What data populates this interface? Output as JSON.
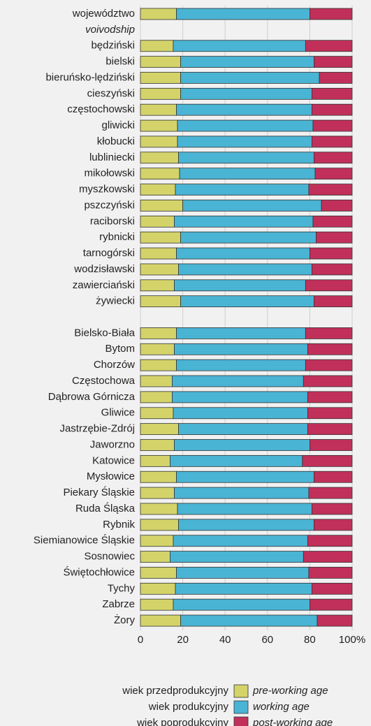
{
  "chart_data": {
    "type": "stacked_barh",
    "categories": [
      "województwo",
      "voivodship",
      "będziński",
      "bielski",
      "bieruńsko-lędziński",
      "cieszyński",
      "częstochowski",
      "gliwicki",
      "kłobucki",
      "lubliniecki",
      "mikołowski",
      "myszkowski",
      "pszczyński",
      "raciborski",
      "rybnicki",
      "tarnogórski",
      "wodzisławski",
      "zawierciański",
      "żywiecki",
      null,
      "Bielsko-Biała",
      "Bytom",
      "Chorzów",
      "Częstochowa",
      "Dąbrowa Górnicza",
      "Gliwice",
      "Jastrzębie-Zdrój",
      "Jaworzno",
      "Katowice",
      "Mysłowice",
      "Piekary Śląskie",
      "Ruda Śląska",
      "Rybnik",
      "Siemianowice Śląskie",
      "Sosnowiec",
      "Świętochłowice",
      "Tychy",
      "Zabrze",
      "Żory"
    ],
    "series": [
      {
        "name": "wiek przedprodukcyjny",
        "name_en": "pre-working age",
        "color": "#d3d36a",
        "values": [
          17,
          null,
          15.5,
          19,
          19,
          19,
          17,
          17.5,
          17.5,
          18,
          18.5,
          16.5,
          20,
          16,
          19,
          17,
          18,
          16,
          19,
          null,
          17,
          16,
          17,
          15,
          15,
          15.5,
          18,
          16,
          14,
          17,
          16,
          17.5,
          18,
          15.5,
          14,
          17,
          16.5,
          15.5,
          19
        ]
      },
      {
        "name": "wiek produkcyjny",
        "name_en": "working age",
        "color": "#4ab4d4",
        "values": [
          63,
          null,
          62.5,
          63,
          65.5,
          62,
          64,
          64,
          63.5,
          64,
          64,
          63,
          65.5,
          65.5,
          64,
          63,
          63,
          62,
          63,
          null,
          61,
          63,
          61,
          62,
          64,
          63.5,
          61,
          64,
          62.5,
          65,
          63.5,
          63.5,
          64,
          63.5,
          63,
          62.5,
          64.5,
          64.5,
          64.5
        ]
      },
      {
        "name": "wiek poprodukcyjny",
        "name_en": "post-working age",
        "color": "#c1305a",
        "values": [
          20,
          null,
          22,
          18,
          15.5,
          19,
          19,
          18.5,
          19,
          18,
          17.5,
          20.5,
          14.5,
          18.5,
          17,
          20,
          19,
          22,
          18,
          null,
          22,
          21,
          22,
          23,
          21,
          21,
          21,
          20,
          23.5,
          18,
          20.5,
          19,
          18,
          21,
          23,
          20.5,
          19,
          20,
          16.5
        ]
      }
    ],
    "xlim": [
      0,
      100
    ],
    "xticks": [
      0,
      20,
      40,
      60,
      80,
      {
        "value": 100,
        "label": "100%"
      }
    ],
    "grid": true
  }
}
